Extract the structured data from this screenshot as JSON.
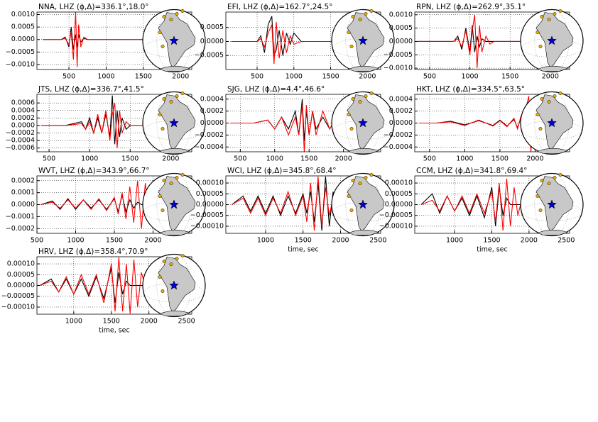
{
  "chart_data": [
    {
      "type": "line",
      "title": "NNA, LHZ (ϕ,Δ)=336.1°,18.0°",
      "x": [
        150,
        300,
        400,
        450,
        500,
        530,
        560,
        590,
        610,
        630,
        660,
        700,
        750,
        800,
        900,
        1100,
        1300,
        1550
      ],
      "series": [
        {
          "color": "#000000",
          "values": [
            0,
            0,
            0,
            0.0001,
            -0.0003,
            0.0005,
            -0.0004,
            0.0002,
            -0.0003,
            0.0002,
            -0.0001,
            5e-05,
            0,
            0,
            0,
            0,
            0,
            0
          ]
        },
        {
          "color": "#ff0000",
          "values": [
            0,
            0,
            0,
            5e-05,
            -0.0002,
            0.0003,
            -0.0008,
            0.0011,
            -0.0011,
            0.0006,
            -0.0003,
            0.0001,
            0,
            0,
            0,
            0,
            0,
            0
          ]
        }
      ],
      "xlim": [
        70,
        2150
      ],
      "xticks": [
        500,
        1000,
        1500,
        2000
      ],
      "ylim": [
        -0.0012,
        0.0011
      ],
      "yticks": [
        {
          "value": 0.001,
          "label": "0.0010"
        },
        {
          "value": 0.0005,
          "label": "0.0005"
        },
        {
          "value": 0,
          "label": "0.0000"
        },
        {
          "value": -0.0005,
          "label": "−0.0005"
        },
        {
          "value": -0.001,
          "label": "−0.0010"
        }
      ],
      "grid": true
    },
    {
      "type": "line",
      "title": "EFI, LHZ (ϕ,Δ)=162.7°,24.5°",
      "x": [
        150,
        400,
        500,
        550,
        600,
        650,
        700,
        730,
        760,
        800,
        850,
        900,
        950,
        1000,
        1100,
        1300,
        1500,
        1800
      ],
      "series": [
        {
          "color": "#000000",
          "values": [
            0,
            0,
            0,
            0.0002,
            -0.0004,
            0.0006,
            0.0009,
            -0.0005,
            -0.0003,
            0.0004,
            -0.0005,
            0.0003,
            -0.0001,
            0.0003,
            0,
            0,
            0,
            0
          ]
        },
        {
          "color": "#ff0000",
          "values": [
            0,
            0,
            0,
            0.0001,
            -0.0002,
            0.0003,
            0.0006,
            -0.0008,
            0.0007,
            -0.0006,
            0.0004,
            -0.0004,
            0.0002,
            -0.0001,
            0,
            0,
            0,
            0
          ]
        }
      ],
      "xlim": [
        75,
        2180
      ],
      "xticks": [
        500,
        1000,
        1500,
        2000
      ],
      "ylim": [
        -0.001,
        0.00105
      ],
      "yticks": [
        {
          "value": 0.0005,
          "label": "0.0005"
        },
        {
          "value": 0,
          "label": "0.0000"
        },
        {
          "value": -0.0005,
          "label": "−0.0005"
        }
      ],
      "grid": true
    },
    {
      "type": "line",
      "title": "RPN, LHZ (ϕ,Δ)=262.9°,35.1°",
      "x": [
        350,
        600,
        800,
        850,
        900,
        950,
        1000,
        1030,
        1060,
        1090,
        1120,
        1150,
        1200,
        1250,
        1300,
        1400,
        1600,
        1800
      ],
      "series": [
        {
          "color": "#000000",
          "values": [
            0,
            0,
            0,
            0.0002,
            -0.0003,
            0.0005,
            -0.0004,
            0.0006,
            -0.0004,
            0.0002,
            -0.0002,
            0.0001,
            0,
            0,
            0,
            0,
            0,
            0
          ]
        },
        {
          "color": "#ff0000",
          "values": [
            0,
            0,
            0,
            0.0001,
            -0.0002,
            0.0004,
            -0.0005,
            0.0004,
            0.001,
            -0.001,
            0.0006,
            -0.0004,
            0.0002,
            -0.0001,
            0,
            0,
            0,
            0
          ]
        }
      ],
      "xlim": [
        315,
        2240
      ],
      "xticks": [
        500,
        1000,
        1500,
        2000
      ],
      "ylim": [
        -0.00105,
        0.0011
      ],
      "yticks": [
        {
          "value": 0.001,
          "label": "0.0010"
        },
        {
          "value": 0.0005,
          "label": "0.0005"
        },
        {
          "value": 0,
          "label": "0.0000"
        },
        {
          "value": -0.0005,
          "label": "−0.0005"
        },
        {
          "value": -0.001,
          "label": "−0.0010"
        }
      ],
      "grid": true
    },
    {
      "type": "line",
      "title": "JTS, LHZ (ϕ,Δ)=336.7°,41.5°",
      "x": [
        400,
        700,
        900,
        950,
        1000,
        1050,
        1100,
        1150,
        1200,
        1250,
        1280,
        1310,
        1340,
        1370,
        1400,
        1450,
        1500,
        1600,
        1800
      ],
      "series": [
        {
          "color": "#000000",
          "values": [
            0,
            0,
            0.0001,
            -0.0001,
            0.0002,
            -0.0002,
            0.0002,
            -0.0002,
            0.0003,
            -0.0003,
            0.0008,
            -0.0005,
            0.0004,
            -0.0003,
            0.0002,
            -0.0001,
            0,
            0,
            0
          ]
        },
        {
          "color": "#ff0000",
          "values": [
            0,
            0,
            5e-05,
            -0.0001,
            0.0001,
            -0.0002,
            0.0003,
            -0.0002,
            0.0004,
            -0.0004,
            0.0003,
            0.0006,
            -0.0006,
            0.0004,
            -0.0002,
            0.0001,
            0,
            0,
            0
          ]
        }
      ],
      "xlim": [
        350,
        2260
      ],
      "xticks": [
        500,
        1000,
        1500,
        2000
      ],
      "ylim": [
        -0.0007,
        0.00083
      ],
      "yticks": [
        {
          "value": 0.0006,
          "label": "0.0006"
        },
        {
          "value": 0.0004,
          "label": "0.0004"
        },
        {
          "value": 0.0002,
          "label": "0.0002"
        },
        {
          "value": 0,
          "label": "0.0000"
        },
        {
          "value": -0.0002,
          "label": "−0.0002"
        },
        {
          "value": -0.0004,
          "label": "−0.0004"
        },
        {
          "value": -0.0006,
          "label": "−0.0006"
        }
      ],
      "grid": true
    },
    {
      "type": "line",
      "title": "SJG, LHZ (ϕ,Δ)=4.4°,46.6°",
      "x": [
        350,
        700,
        900,
        1000,
        1100,
        1200,
        1300,
        1350,
        1400,
        1430,
        1460,
        1500,
        1550,
        1600,
        1700,
        1800,
        1900,
        2000
      ],
      "series": [
        {
          "color": "#000000",
          "values": [
            0,
            0,
            5e-05,
            -0.0001,
            0.0001,
            -0.0001,
            0.0002,
            -0.0002,
            0.0004,
            -0.0003,
            0.0002,
            -0.0002,
            0.0002,
            -0.0001,
            0.0001,
            -0.0001,
            0.0001,
            0
          ]
        },
        {
          "color": "#ff0000",
          "values": [
            0,
            0,
            5e-05,
            -0.0001,
            0.0001,
            -0.0002,
            0.0001,
            -0.0002,
            0.0003,
            -0.0005,
            0.0003,
            -0.0002,
            0.0002,
            -0.0002,
            0.0002,
            -0.0001,
            0.0001,
            0
          ]
        }
      ],
      "xlim": [
        290,
        2540
      ],
      "xticks": [
        500,
        1000,
        1500,
        2000
      ],
      "ylim": [
        -0.00048,
        0.00048
      ],
      "yticks": [
        {
          "value": 0.0004,
          "label": "0.0004"
        },
        {
          "value": 0.0002,
          "label": "0.0002"
        },
        {
          "value": 0,
          "label": "0.0000"
        },
        {
          "value": -0.0002,
          "label": "−0.0002"
        },
        {
          "value": -0.0004,
          "label": "−0.0004"
        }
      ],
      "grid": true
    },
    {
      "type": "line",
      "title": "HKT, LHZ (ϕ,Δ)=334.5°,63.5°",
      "x": [
        350,
        600,
        800,
        1000,
        1200,
        1400,
        1500,
        1600,
        1700,
        1750,
        1800,
        1850,
        1880,
        1910,
        1940,
        1970,
        2000
      ],
      "series": [
        {
          "color": "#000000",
          "values": [
            0,
            0,
            3e-05,
            -3e-05,
            4e-05,
            -4e-05,
            5e-05,
            -5e-05,
            6e-05,
            -8e-05,
            0.0001,
            -0.0001,
            5e-05,
            0,
            0,
            0,
            0
          ]
        },
        {
          "color": "#ff0000",
          "values": [
            0,
            0,
            2e-05,
            -4e-05,
            5e-05,
            -5e-05,
            4e-05,
            -6e-05,
            8e-05,
            -0.0001,
            0.00012,
            -0.0002,
            0.0003,
            0.00045,
            -0.0005,
            0.0002,
            0
          ]
        }
      ],
      "xlim": [
        290,
        2490
      ],
      "xticks": [
        500,
        1000,
        1500,
        2000
      ],
      "ylim": [
        -0.00048,
        0.00048
      ],
      "yticks": [
        {
          "value": 0.0004,
          "label": "0.0004"
        },
        {
          "value": 0.0002,
          "label": "0.0002"
        },
        {
          "value": 0,
          "label": "0.0000"
        },
        {
          "value": -0.0002,
          "label": "−0.0002"
        },
        {
          "value": -0.0004,
          "label": "−0.0004"
        }
      ],
      "grid": true
    },
    {
      "type": "line",
      "title": "WVT, LHZ (ϕ,Δ)=343.9°,66.7°",
      "x": [
        550,
        700,
        800,
        900,
        1000,
        1100,
        1200,
        1300,
        1400,
        1500,
        1550,
        1600,
        1650,
        1700,
        1750,
        1800,
        1850,
        1900,
        1950,
        2000
      ],
      "series": [
        {
          "color": "#000000",
          "values": [
            0,
            3e-05,
            -4e-05,
            5e-05,
            -4e-05,
            4e-05,
            -3e-05,
            4e-05,
            -4e-05,
            5e-05,
            -6e-05,
            8e-05,
            -6e-05,
            4e-05,
            -3e-05,
            2e-05,
            0,
            0,
            0,
            0
          ]
        },
        {
          "color": "#ff0000",
          "values": [
            0,
            2e-05,
            -3e-05,
            4e-05,
            -3e-05,
            4e-05,
            -4e-05,
            5e-05,
            -5e-05,
            6e-05,
            -8e-05,
            0.0001,
            -0.00012,
            0.00015,
            -0.00015,
            0.0002,
            -0.0002,
            0.00018,
            -0.0001,
            0
          ]
        }
      ],
      "xlim": [
        500,
        2500
      ],
      "xticks": [
        500,
        1000,
        1500,
        2000
      ],
      "ylim": [
        -0.00024,
        0.00024
      ],
      "yticks": [
        {
          "value": 0.0002,
          "label": "0.0002"
        },
        {
          "value": 0.0001,
          "label": "0.0001"
        },
        {
          "value": 0,
          "label": "0.0000"
        },
        {
          "value": -0.0001,
          "label": "−0.0001"
        },
        {
          "value": -0.0002,
          "label": "−0.0002"
        }
      ],
      "grid": true
    },
    {
      "type": "line",
      "title": "WCI, LHZ (ϕ,Δ)=345.8°,68.4°",
      "x": [
        550,
        700,
        800,
        900,
        1000,
        1100,
        1200,
        1300,
        1400,
        1500,
        1550,
        1600,
        1650,
        1700,
        1750,
        1800,
        1850,
        1900,
        1950,
        2000
      ],
      "series": [
        {
          "color": "#000000",
          "values": [
            0,
            4e-05,
            -3e-05,
            4e-05,
            -4e-05,
            4e-05,
            -5e-05,
            4e-05,
            -4e-05,
            5e-05,
            -4e-05,
            6e-05,
            -8e-05,
            0.0001,
            -0.00012,
            0.00013,
            -0.0001,
            6e-05,
            -3e-05,
            0
          ]
        },
        {
          "color": "#ff0000",
          "values": [
            0,
            3e-05,
            -4e-05,
            3e-05,
            -5e-05,
            3e-05,
            -4e-05,
            6e-05,
            -5e-05,
            4e-05,
            -8e-05,
            0.0001,
            -0.00012,
            0.00013,
            -0.0001,
            8e-05,
            -5e-05,
            3e-05,
            0,
            0
          ]
        }
      ],
      "xlim": [
        470,
        2535
      ],
      "xticks": [
        1000,
        1500,
        2000,
        2500
      ],
      "ylim": [
        -0.000133,
        0.000133
      ],
      "yticks": [
        {
          "value": 0.0001,
          "label": "0.00010"
        },
        {
          "value": 5e-05,
          "label": "0.00005"
        },
        {
          "value": 0,
          "label": "0.00000"
        },
        {
          "value": -5e-05,
          "label": "−0.00005"
        },
        {
          "value": -0.0001,
          "label": "−0.00010"
        }
      ],
      "xlabel": "time, sec",
      "grid": true
    },
    {
      "type": "line",
      "title": "CCM, LHZ (ϕ,Δ)=341.8°,69.4°",
      "x": [
        550,
        700,
        800,
        900,
        1000,
        1100,
        1200,
        1300,
        1400,
        1500,
        1550,
        1600,
        1650,
        1700,
        1750,
        1800,
        1850,
        1900,
        1950,
        2000
      ],
      "series": [
        {
          "color": "#000000",
          "values": [
            0,
            5e-05,
            -4e-05,
            4e-05,
            -3e-05,
            3e-05,
            -5e-05,
            4e-05,
            -6e-05,
            8e-05,
            -0.0001,
            8e-05,
            -5e-05,
            3e-05,
            0,
            0,
            0,
            0,
            0,
            0
          ]
        },
        {
          "color": "#ff0000",
          "values": [
            0,
            2e-05,
            -3e-05,
            4e-05,
            -3e-05,
            4e-05,
            -4e-05,
            5e-05,
            -4e-05,
            6e-05,
            -8e-05,
            0.0001,
            -0.00012,
            0.00012,
            -0.0001,
            8e-05,
            -5e-05,
            2e-05,
            0,
            0
          ]
        }
      ],
      "xlim": [
        465,
        2545
      ],
      "xticks": [
        1000,
        1500,
        2000,
        2500
      ],
      "ylim": [
        -0.000133,
        0.000133
      ],
      "yticks": [
        {
          "value": 0.0001,
          "label": "0.00010"
        },
        {
          "value": 5e-05,
          "label": "0.00005"
        },
        {
          "value": 0,
          "label": "0.00000"
        },
        {
          "value": -5e-05,
          "label": "−0.00005"
        },
        {
          "value": -0.0001,
          "label": "−0.00010"
        }
      ],
      "xlabel": "time, sec",
      "grid": true
    },
    {
      "type": "line",
      "title": "HRV, LHZ (ϕ,Δ)=358.4°,70.9°",
      "x": [
        550,
        700,
        800,
        900,
        1000,
        1100,
        1200,
        1300,
        1400,
        1500,
        1550,
        1600,
        1650,
        1700,
        1750,
        1800,
        1850,
        1900,
        1950,
        2000
      ],
      "series": [
        {
          "color": "#000000",
          "values": [
            0,
            3e-05,
            -3e-05,
            3e-05,
            -4e-05,
            3e-05,
            -5e-05,
            4e-05,
            -6e-05,
            8e-05,
            -8e-05,
            6e-05,
            -4e-05,
            2e-05,
            0,
            0,
            0,
            0,
            0,
            0
          ]
        },
        {
          "color": "#ff0000",
          "values": [
            0,
            2e-05,
            -3e-05,
            4e-05,
            -4e-05,
            5e-05,
            -4e-05,
            5e-05,
            -8e-05,
            0.0001,
            -0.00012,
            0.00013,
            -0.00012,
            0.0001,
            -0.00013,
            0.00012,
            -0.0001,
            6e-05,
            0,
            0
          ]
        }
      ],
      "xlim": [
        510,
        2570
      ],
      "xticks": [
        1000,
        1500,
        2000,
        2500
      ],
      "ylim": [
        -0.000133,
        0.000133
      ],
      "yticks": [
        {
          "value": 0.0001,
          "label": "0.00010"
        },
        {
          "value": 5e-05,
          "label": "0.00005"
        },
        {
          "value": 0,
          "label": "0.00000"
        },
        {
          "value": -5e-05,
          "label": "−0.00005"
        },
        {
          "value": -0.0001,
          "label": "−0.00010"
        }
      ],
      "xlabel": "time, sec",
      "grid": true
    }
  ]
}
